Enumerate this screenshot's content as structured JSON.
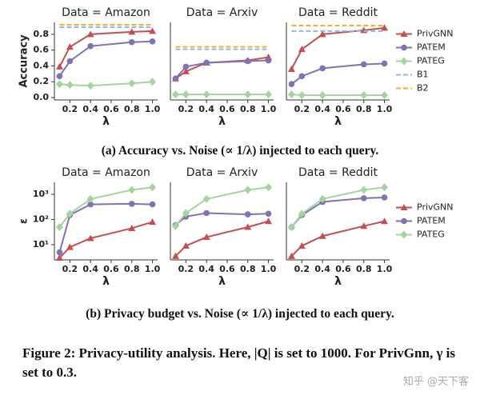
{
  "chart_data": [
    {
      "type": "line",
      "title": "Data = Amazon",
      "ylabel": "Accuracy",
      "xlabel": "λ",
      "x": [
        0.1,
        0.2,
        0.4,
        0.8,
        1.0
      ],
      "xlim": [
        0.05,
        1.05
      ],
      "xticks": [
        0.2,
        0.4,
        0.6,
        0.8,
        {
          "value": 1,
          "label": "1.0"
        }
      ],
      "ylim": [
        -0.03,
        0.95
      ],
      "yticks": [
        {
          "value": 0,
          "label": "0.0"
        },
        0.2,
        0.4,
        0.6,
        0.8
      ],
      "series": [
        {
          "name": "PrivGNN",
          "color": "#c44e52",
          "marker": "triangle",
          "values": [
            0.39,
            0.64,
            0.8,
            0.83,
            0.84
          ]
        },
        {
          "name": "PATEM",
          "color": "#8172b2",
          "marker": "circle",
          "values": [
            0.27,
            0.46,
            0.65,
            0.7,
            0.71
          ]
        },
        {
          "name": "PATEG",
          "color": "#a6d49f",
          "marker": "diamond",
          "values": [
            0.17,
            0.16,
            0.15,
            0.18,
            0.2
          ]
        },
        {
          "name": "B1",
          "color": "#8fb8e8",
          "style": "dashed",
          "values": [
            0.89,
            0.89,
            0.89,
            0.89,
            0.89
          ]
        },
        {
          "name": "B2",
          "color": "#f0b030",
          "style": "dashed",
          "values": [
            0.92,
            0.92,
            0.92,
            0.92,
            0.92
          ]
        }
      ]
    },
    {
      "type": "line",
      "title": "Data = Arxiv",
      "xlabel": "λ",
      "x": [
        0.1,
        0.2,
        0.4,
        0.8,
        1.0
      ],
      "xlim": [
        0.05,
        1.05
      ],
      "xticks": [
        0.2,
        0.4,
        0.6,
        0.8,
        {
          "value": 1,
          "label": "1.0"
        }
      ],
      "ylim": [
        -0.03,
        0.95
      ],
      "series": [
        {
          "name": "PrivGNN",
          "color": "#c44e52",
          "marker": "triangle",
          "values": [
            0.24,
            0.33,
            0.44,
            0.47,
            0.51
          ]
        },
        {
          "name": "PATEM",
          "color": "#8172b2",
          "marker": "circle",
          "values": [
            0.24,
            0.39,
            0.44,
            0.46,
            0.47
          ]
        },
        {
          "name": "PATEG",
          "color": "#a6d49f",
          "marker": "diamond",
          "values": [
            0.04,
            0.04,
            0.04,
            0.04,
            0.04
          ]
        },
        {
          "name": "B1",
          "color": "#8fb8e8",
          "style": "dashed",
          "values": [
            0.61,
            0.61,
            0.61,
            0.61,
            0.61
          ]
        },
        {
          "name": "B2",
          "color": "#f0b030",
          "style": "dashed",
          "values": [
            0.64,
            0.64,
            0.64,
            0.64,
            0.64
          ]
        }
      ]
    },
    {
      "type": "line",
      "title": "Data = Reddit",
      "xlabel": "λ",
      "legend": "right",
      "x": [
        0.1,
        0.2,
        0.4,
        0.8,
        1.0
      ],
      "xlim": [
        0.05,
        1.05
      ],
      "xticks": [
        0.2,
        0.4,
        0.6,
        0.8,
        {
          "value": 1,
          "label": "1.0"
        }
      ],
      "ylim": [
        -0.03,
        0.95
      ],
      "series": [
        {
          "name": "PrivGNN",
          "color": "#c44e52",
          "marker": "triangle",
          "values": [
            0.36,
            0.61,
            0.8,
            0.85,
            0.88
          ]
        },
        {
          "name": "PATEM",
          "color": "#8172b2",
          "marker": "circle",
          "values": [
            0.17,
            0.27,
            0.37,
            0.42,
            0.43
          ]
        },
        {
          "name": "PATEG",
          "color": "#a6d49f",
          "marker": "diamond",
          "values": [
            0.04,
            0.03,
            0.03,
            0.03,
            0.03
          ]
        },
        {
          "name": "B1",
          "color": "#8fb8e8",
          "style": "dashed",
          "values": [
            0.84,
            0.84,
            0.84,
            0.84,
            0.84
          ]
        },
        {
          "name": "B2",
          "color": "#f0b030",
          "style": "dashed",
          "values": [
            0.91,
            0.91,
            0.91,
            0.91,
            0.91
          ]
        }
      ]
    },
    {
      "type": "line",
      "title": "Data = Amazon",
      "ylabel": "ε",
      "xlabel": "λ",
      "yscale": "log",
      "x": [
        0.1,
        0.2,
        0.4,
        0.8,
        1.0
      ],
      "xlim": [
        0.05,
        1.05
      ],
      "xticks": [
        0.2,
        0.4,
        0.6,
        0.8,
        {
          "value": 1,
          "label": "1.0"
        }
      ],
      "ylim": [
        2.5,
        3000
      ],
      "yticks": [
        {
          "value": 10,
          "label": "10¹"
        },
        {
          "value": 100,
          "label": "10²"
        },
        {
          "value": 1000,
          "label": "10³"
        }
      ],
      "series": [
        {
          "name": "PrivGNN",
          "color": "#c44e52",
          "marker": "triangle",
          "values": [
            3,
            8,
            18,
            45,
            80
          ]
        },
        {
          "name": "PATEM",
          "color": "#8172b2",
          "marker": "circle",
          "values": [
            5,
            150,
            400,
            420,
            400
          ]
        },
        {
          "name": "PATEG",
          "color": "#a6d49f",
          "marker": "diamond",
          "values": [
            50,
            170,
            650,
            1500,
            1900
          ]
        }
      ]
    },
    {
      "type": "line",
      "title": "Data = Arxiv",
      "xlabel": "λ",
      "yscale": "log",
      "x": [
        0.1,
        0.2,
        0.4,
        0.8,
        1.0
      ],
      "xlim": [
        0.05,
        1.05
      ],
      "xticks": [
        0.2,
        0.4,
        0.6,
        0.8,
        {
          "value": 1,
          "label": "1.0"
        }
      ],
      "ylim": [
        2.5,
        3000
      ],
      "series": [
        {
          "name": "PrivGNN",
          "color": "#c44e52",
          "marker": "triangle",
          "values": [
            3.5,
            9,
            20,
            50,
            85
          ]
        },
        {
          "name": "PATEM",
          "color": "#8172b2",
          "marker": "circle",
          "values": [
            60,
            130,
            180,
            160,
            170
          ]
        },
        {
          "name": "PATEG",
          "color": "#a6d49f",
          "marker": "diamond",
          "values": [
            55,
            180,
            650,
            1500,
            1900
          ]
        }
      ]
    },
    {
      "type": "line",
      "title": "Data = Reddit",
      "xlabel": "λ",
      "yscale": "log",
      "legend": "right",
      "x": [
        0.1,
        0.2,
        0.4,
        0.8,
        1.0
      ],
      "xlim": [
        0.05,
        1.05
      ],
      "xticks": [
        0.2,
        0.4,
        0.6,
        0.8,
        {
          "value": 1,
          "label": "1.0"
        }
      ],
      "ylim": [
        2.5,
        3000
      ],
      "series": [
        {
          "name": "PrivGNN",
          "color": "#c44e52",
          "marker": "triangle",
          "values": [
            3.5,
            9,
            22,
            55,
            85
          ]
        },
        {
          "name": "PATEM",
          "color": "#8172b2",
          "marker": "circle",
          "values": [
            50,
            150,
            500,
            700,
            750
          ]
        },
        {
          "name": "PATEG",
          "color": "#a6d49f",
          "marker": "diamond",
          "values": [
            50,
            170,
            650,
            1500,
            1900
          ]
        }
      ]
    }
  ],
  "captions": [
    "(a) Accuracy vs. Noise (∝ 1/λ) injected to each query.",
    "(b) Privacy budget vs. Noise (∝ 1/λ) injected to each query."
  ],
  "figure_caption": "Figure 2: Privacy-utility analysis. Here, |Q| is set to 1000. For PrivGnn, γ is set to 0.3.",
  "watermark": "知乎 @天下客"
}
